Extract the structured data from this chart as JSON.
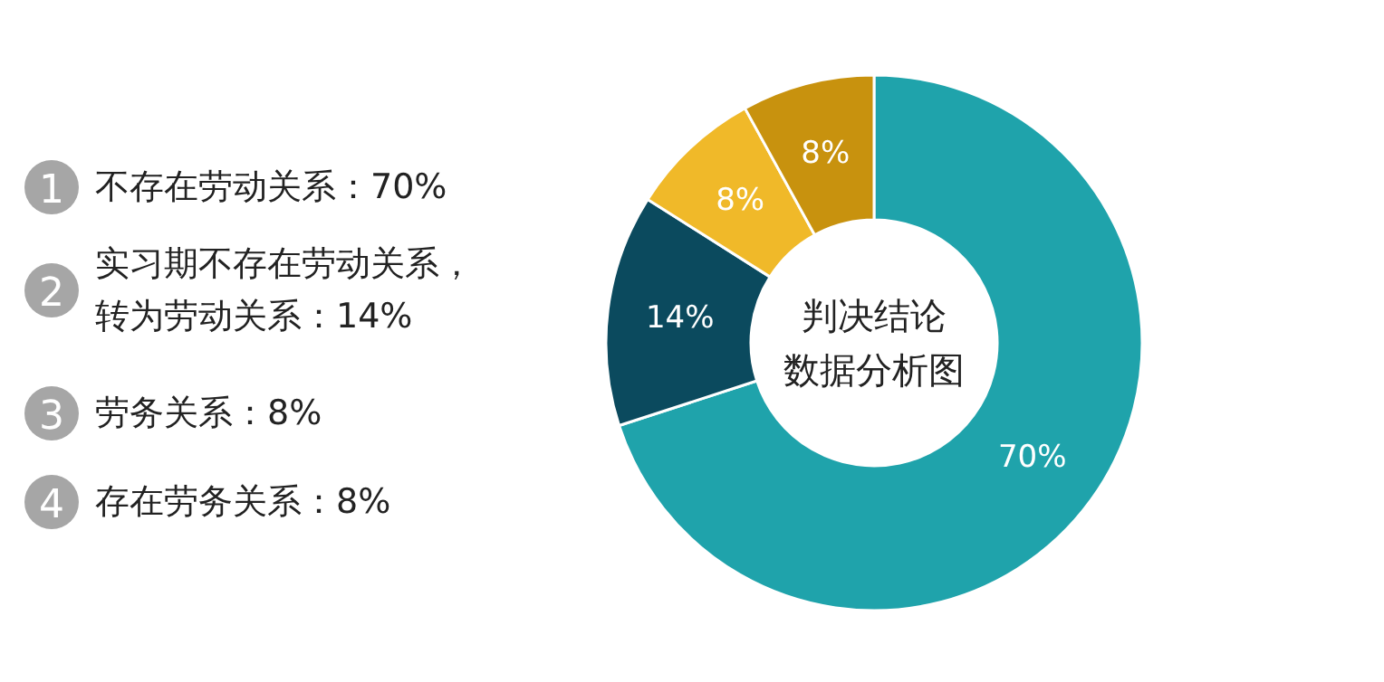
{
  "chart_data": {
    "type": "donut",
    "title": "判决结论数据分析图",
    "categories": [
      null,
      null,
      null,
      null
    ],
    "values": [
      70,
      14,
      8,
      8
    ],
    "value_labels": [
      "70%",
      "14%",
      "8%",
      "8%"
    ],
    "colors": [
      "#1fa3ab",
      "#0b4a5e",
      "#f0b929",
      "#c8920e"
    ],
    "annotations": [
      "1",
      "不存在劳动关系：70%",
      "2",
      "实习期不存在劳动关系，转为劳动关系：14%",
      "3",
      "劳务关系：8%",
      "4",
      "存在劳务关系：8%"
    ]
  }
}
